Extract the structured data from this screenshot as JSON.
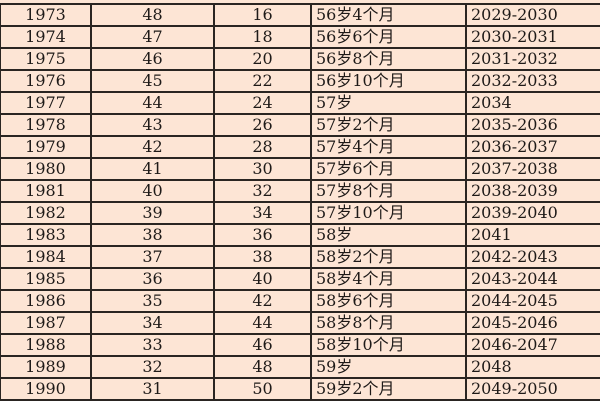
{
  "table": {
    "rows": [
      [
        "1973",
        "48",
        "16",
        "56岁4个月",
        "2029-2030"
      ],
      [
        "1974",
        "47",
        "18",
        "56岁6个月",
        "2030-2031"
      ],
      [
        "1975",
        "46",
        "20",
        "56岁8个月",
        "2031-2032"
      ],
      [
        "1976",
        "45",
        "22",
        "56岁10个月",
        "2032-2033"
      ],
      [
        "1977",
        "44",
        "24",
        "57岁",
        "2034"
      ],
      [
        "1978",
        "43",
        "26",
        "57岁2个月",
        "2035-2036"
      ],
      [
        "1979",
        "42",
        "28",
        "57岁4个月",
        "2036-2037"
      ],
      [
        "1980",
        "41",
        "30",
        "57岁6个月",
        "2037-2038"
      ],
      [
        "1981",
        "40",
        "32",
        "57岁8个月",
        "2038-2039"
      ],
      [
        "1982",
        "39",
        "34",
        "57岁10个月",
        "2039-2040"
      ],
      [
        "1983",
        "38",
        "36",
        "58岁",
        "2041"
      ],
      [
        "1984",
        "37",
        "38",
        "58岁2个月",
        "2042-2043"
      ],
      [
        "1985",
        "36",
        "40",
        "58岁4个月",
        "2043-2044"
      ],
      [
        "1986",
        "35",
        "42",
        "58岁6个月",
        "2044-2045"
      ],
      [
        "1987",
        "34",
        "44",
        "58岁8个月",
        "2045-2046"
      ],
      [
        "1988",
        "33",
        "46",
        "58岁10个月",
        "2046-2047"
      ],
      [
        "1989",
        "32",
        "48",
        "59岁",
        "2048"
      ],
      [
        "1990",
        "31",
        "50",
        "59岁2个月",
        "2049-2050"
      ]
    ]
  },
  "colors": {
    "background": "#fde5d5",
    "border": "#2a2522",
    "text": "#1e1a18"
  }
}
